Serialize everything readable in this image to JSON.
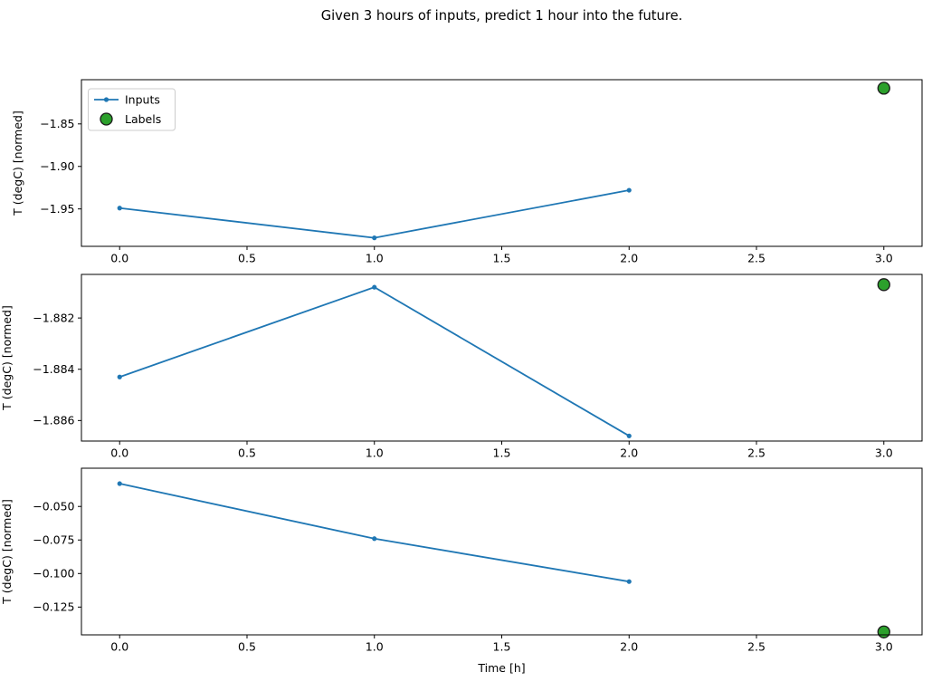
{
  "figure": {
    "title": "Given 3 hours of inputs, predict 1 hour into the future.",
    "background_color": "#ffffff",
    "text_color": "#000000"
  },
  "chart_data": [
    {
      "type": "line",
      "subplot": "top",
      "xlabel": "",
      "ylabel": "T (degC) [normed]",
      "xlim": [
        -0.15,
        3.15
      ],
      "ylim": [
        -1.994,
        -1.798
      ],
      "xticks": [
        0.0,
        0.5,
        1.0,
        1.5,
        2.0,
        2.5,
        3.0
      ],
      "yticks": [
        -1.85,
        -1.9,
        -1.95
      ],
      "xtick_decimals": 1,
      "ytick_decimals": 2,
      "grid": false,
      "legend": {
        "show": true,
        "position": "upper-left",
        "entries": [
          "Inputs",
          "Labels"
        ]
      },
      "series": [
        {
          "name": "Inputs",
          "style": "line+marker",
          "color": "#1f77b4",
          "x": [
            0.0,
            1.0,
            2.0
          ],
          "y": [
            -1.949,
            -1.984,
            -1.928
          ]
        },
        {
          "name": "Labels",
          "style": "scatter",
          "color": "#2ca02c",
          "edge_color": "#1a1a1a",
          "x": [
            3.0
          ],
          "y": [
            -1.808
          ]
        }
      ]
    },
    {
      "type": "line",
      "subplot": "middle",
      "xlabel": "",
      "ylabel": "T (degC) [normed]",
      "xlim": [
        -0.15,
        3.15
      ],
      "ylim": [
        -1.8868,
        -1.8803
      ],
      "xticks": [
        0.0,
        0.5,
        1.0,
        1.5,
        2.0,
        2.5,
        3.0
      ],
      "yticks": [
        -1.882,
        -1.884,
        -1.886
      ],
      "xtick_decimals": 1,
      "ytick_decimals": 3,
      "grid": false,
      "legend": {
        "show": false
      },
      "series": [
        {
          "name": "Inputs",
          "style": "line+marker",
          "color": "#1f77b4",
          "x": [
            0.0,
            1.0,
            2.0
          ],
          "y": [
            -1.8843,
            -1.8808,
            -1.8866
          ]
        },
        {
          "name": "Labels",
          "style": "scatter",
          "color": "#2ca02c",
          "edge_color": "#1a1a1a",
          "x": [
            3.0
          ],
          "y": [
            -1.8807
          ]
        }
      ]
    },
    {
      "type": "line",
      "subplot": "bottom",
      "xlabel": "Time [h]",
      "ylabel": "T (degC) [normed]",
      "xlim": [
        -0.15,
        3.15
      ],
      "ylim": [
        -0.1457,
        -0.0215
      ],
      "xticks": [
        0.0,
        0.5,
        1.0,
        1.5,
        2.0,
        2.5,
        3.0
      ],
      "yticks": [
        -0.05,
        -0.075,
        -0.1,
        -0.125
      ],
      "xtick_decimals": 1,
      "ytick_decimals": 3,
      "grid": false,
      "legend": {
        "show": false
      },
      "series": [
        {
          "name": "Inputs",
          "style": "line+marker",
          "color": "#1f77b4",
          "x": [
            0.0,
            1.0,
            2.0
          ],
          "y": [
            -0.033,
            -0.074,
            -0.106
          ]
        },
        {
          "name": "Labels",
          "style": "scatter",
          "color": "#2ca02c",
          "edge_color": "#1a1a1a",
          "x": [
            3.0
          ],
          "y": [
            -0.1435
          ]
        }
      ]
    }
  ]
}
